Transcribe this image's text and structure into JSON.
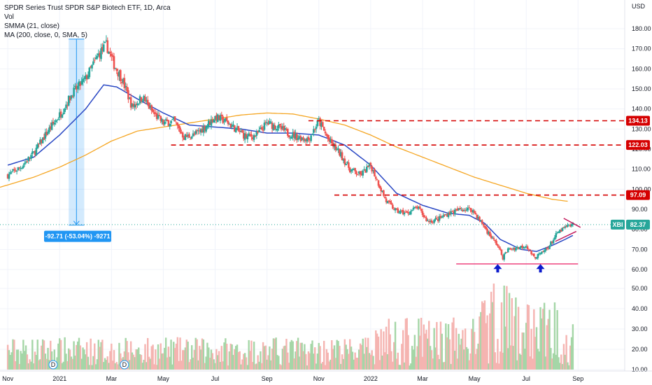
{
  "legend": {
    "title": "SPDR Series Trust SPDR S&P Biotech ETF, 1D, Arca",
    "vol": "Vol",
    "smma": "SMMA (21, close)",
    "ma": "MA (200, close, 0, SMA, 5)"
  },
  "colors": {
    "up": "#26a69a",
    "down": "#ef5350",
    "vol_up": "#a5d6a7",
    "vol_down": "#f5b4b1",
    "smma": "#2a48c4",
    "ma": "#f5a623",
    "level": "#d50000",
    "support": "#e91e63",
    "measure": "#2196f3",
    "price_label": "#26a69a",
    "pattern": "#c2185b",
    "arrow": "#0d1bcc"
  },
  "chart_data": {
    "type": "candlestick",
    "currency": "USD",
    "ticker": "XBI",
    "last_price": "82.37",
    "y_ticks": [
      "180.00",
      "170.00",
      "160.00",
      "150.00",
      "140.00",
      "130.00",
      "120.00",
      "110.00",
      "100.00",
      "90.00",
      "80.00",
      "70.00",
      "60.00",
      "50.00",
      "40.00",
      "30.00",
      "20.00",
      "10.00"
    ],
    "y_tick_values": [
      180,
      170,
      160,
      150,
      140,
      130,
      120,
      110,
      100,
      90,
      80,
      70,
      60,
      50,
      40,
      30,
      20,
      10
    ],
    "x_ticks": [
      "Nov",
      "2021",
      "Mar",
      "May",
      "Jul",
      "Sep",
      "Nov",
      "2022",
      "Mar",
      "May",
      "Jul",
      "Sep"
    ],
    "x_tick_months": [
      0,
      2,
      4,
      6,
      8,
      10,
      12,
      14,
      16,
      18,
      20,
      22
    ],
    "x_range_months": [
      -0.3,
      23.8
    ],
    "price_range": [
      60,
      180
    ],
    "price_anchors": [
      [
        0,
        107
      ],
      [
        0.5,
        111
      ],
      [
        1,
        118
      ],
      [
        1.5,
        128
      ],
      [
        2,
        137
      ],
      [
        2.5,
        148
      ],
      [
        3,
        155
      ],
      [
        3.5,
        167
      ],
      [
        3.8,
        172
      ],
      [
        4.1,
        162
      ],
      [
        4.4,
        155
      ],
      [
        4.8,
        141
      ],
      [
        5.2,
        146
      ],
      [
        5.6,
        138
      ],
      [
        6,
        133
      ],
      [
        6.4,
        134
      ],
      [
        6.8,
        126
      ],
      [
        7.2,
        127
      ],
      [
        7.6,
        131
      ],
      [
        8,
        136
      ],
      [
        8.4,
        134
      ],
      [
        8.8,
        130
      ],
      [
        9.2,
        126
      ],
      [
        9.6,
        127
      ],
      [
        10,
        133
      ],
      [
        10.4,
        131
      ],
      [
        10.8,
        128
      ],
      [
        11.2,
        126
      ],
      [
        11.6,
        125
      ],
      [
        12,
        134
      ],
      [
        12.4,
        124
      ],
      [
        12.8,
        118
      ],
      [
        13.2,
        110
      ],
      [
        13.6,
        107
      ],
      [
        14,
        112
      ],
      [
        14.3,
        103
      ],
      [
        14.6,
        94
      ],
      [
        15,
        89
      ],
      [
        15.4,
        88
      ],
      [
        15.8,
        91
      ],
      [
        16.2,
        84
      ],
      [
        16.6,
        85
      ],
      [
        17,
        88
      ],
      [
        17.5,
        90
      ],
      [
        17.9,
        90
      ],
      [
        18.3,
        83
      ],
      [
        18.6,
        77
      ],
      [
        18.9,
        72
      ],
      [
        19.1,
        66
      ],
      [
        19.3,
        70
      ],
      [
        19.7,
        71
      ],
      [
        20,
        72
      ],
      [
        20.3,
        66
      ],
      [
        20.6,
        68
      ],
      [
        20.9,
        72
      ],
      [
        21.2,
        78
      ],
      [
        21.5,
        81
      ],
      [
        21.8,
        82.37
      ]
    ],
    "smma_anchors": [
      [
        0,
        112
      ],
      [
        1,
        116
      ],
      [
        2,
        127
      ],
      [
        3,
        140
      ],
      [
        3.7,
        152
      ],
      [
        4.2,
        151
      ],
      [
        5,
        145
      ],
      [
        6,
        138
      ],
      [
        7,
        132
      ],
      [
        8,
        131
      ],
      [
        9,
        130
      ],
      [
        10,
        128
      ],
      [
        11,
        128
      ],
      [
        12,
        127
      ],
      [
        13,
        122
      ],
      [
        14,
        112
      ],
      [
        15,
        98
      ],
      [
        16,
        92
      ],
      [
        17,
        88
      ],
      [
        17.8,
        87
      ],
      [
        18.4,
        83
      ],
      [
        19,
        75
      ],
      [
        19.8,
        70
      ],
      [
        20.4,
        69
      ],
      [
        21,
        72
      ],
      [
        21.5,
        75
      ],
      [
        21.8,
        77
      ]
    ],
    "ma_anchors": [
      [
        -0.3,
        101
      ],
      [
        1,
        106
      ],
      [
        2,
        111
      ],
      [
        3,
        117
      ],
      [
        4,
        124
      ],
      [
        5,
        129
      ],
      [
        6,
        131
      ],
      [
        7,
        133
      ],
      [
        8,
        135
      ],
      [
        9,
        137
      ],
      [
        10,
        138
      ],
      [
        11,
        137.5
      ],
      [
        12,
        135
      ],
      [
        13,
        132
      ],
      [
        14,
        127
      ],
      [
        15,
        121
      ],
      [
        16,
        116
      ],
      [
        17,
        111
      ],
      [
        18,
        106
      ],
      [
        19,
        102
      ],
      [
        20,
        98
      ],
      [
        21,
        95
      ],
      [
        21.6,
        94
      ]
    ],
    "volume_range": [
      10,
      56
    ],
    "levels": [
      {
        "label": "134.13",
        "value": 134.13,
        "from_month": 11.6
      },
      {
        "label": "122.03",
        "value": 122.03,
        "from_month": 6.3
      },
      {
        "label": "97.09",
        "value": 97.09,
        "from_month": 12.6
      }
    ],
    "support_level": {
      "value": 62.8,
      "from_month": 17.3,
      "to_month": 22.0
    },
    "measurement": {
      "label": "-92.71 (-53.04%) -9271",
      "from_month": 2.35,
      "to_month": 2.95,
      "high": 174.8,
      "low": 82.1
    },
    "dividend_markers": [
      {
        "label": "D",
        "month": 1.75
      },
      {
        "label": "D",
        "month": 4.5
      }
    ],
    "arrows_at_months": [
      18.9,
      20.55
    ]
  }
}
